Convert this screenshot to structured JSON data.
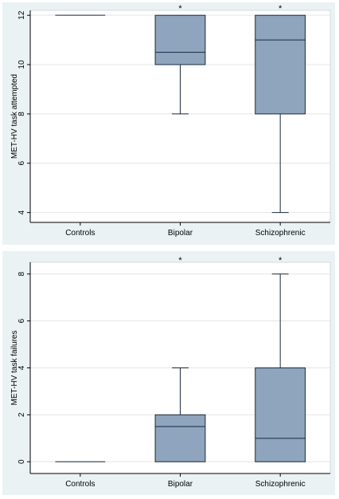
{
  "colors": {
    "box_fill": "#8ea5bd",
    "box_stroke": "#1a2a3a",
    "panel_bg": "#eaf2f3"
  },
  "chart_data": [
    {
      "type": "box",
      "ylabel": "MET-HV task attempted",
      "ylim": [
        3.6,
        12.2
      ],
      "yticks": [
        4,
        6,
        8,
        10,
        12
      ],
      "categories": [
        "Controls",
        "Bipolar",
        "Schizophrenic"
      ],
      "boxes": [
        {
          "category": "Controls",
          "min": 12,
          "q1": 12,
          "median": 12,
          "q3": 12,
          "max": 12,
          "annotation": ""
        },
        {
          "category": "Bipolar",
          "min": 8,
          "q1": 10,
          "median": 10.5,
          "q3": 12,
          "max": 12,
          "annotation": "*"
        },
        {
          "category": "Schizophrenic",
          "min": 4,
          "q1": 8,
          "median": 11,
          "q3": 12,
          "max": 12,
          "annotation": "*"
        }
      ],
      "grid": true
    },
    {
      "type": "box",
      "ylabel": "MET-HV task failures",
      "ylim": [
        -0.5,
        8.5
      ],
      "yticks": [
        0,
        2,
        4,
        6,
        8
      ],
      "categories": [
        "Controls",
        "Bipolar",
        "Schizophrenic"
      ],
      "boxes": [
        {
          "category": "Controls",
          "min": 0,
          "q1": 0,
          "median": 0,
          "q3": 0,
          "max": 0,
          "annotation": ""
        },
        {
          "category": "Bipolar",
          "min": 0,
          "q1": 0,
          "median": 1.5,
          "q3": 2,
          "max": 4,
          "annotation": "*"
        },
        {
          "category": "Schizophrenic",
          "min": 0,
          "q1": 0,
          "median": 1,
          "q3": 4,
          "max": 8,
          "annotation": "*"
        }
      ],
      "grid": true
    }
  ]
}
